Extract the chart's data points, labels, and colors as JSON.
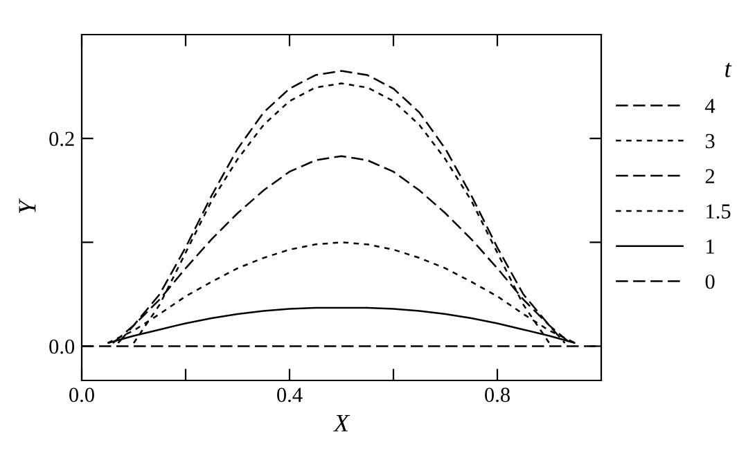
{
  "chart_data": {
    "type": "line",
    "xlabel": "X",
    "ylabel": "Y",
    "legend_title": "t",
    "legend": "right",
    "grid": false,
    "marker": "none",
    "xlim": [
      0,
      1.0
    ],
    "ylim": [
      -0.033,
      0.3
    ],
    "xticks": [
      {
        "value": 0,
        "label": "0.0"
      },
      {
        "value": 0.2,
        "label": null
      },
      {
        "value": 0.4,
        "label": "0.4"
      },
      {
        "value": 0.6,
        "label": null
      },
      {
        "value": 0.8,
        "label": "0.8"
      }
    ],
    "yticks": [
      {
        "value": 0,
        "label": "0.0"
      },
      {
        "value": 0.1,
        "label": null
      },
      {
        "value": 0.2,
        "label": "0.2"
      }
    ],
    "series": [
      {
        "name": "4",
        "color": "#000000",
        "line_style": "dashed",
        "x": [
          0.07,
          0.1,
          0.15,
          0.2,
          0.25,
          0.3,
          0.35,
          0.4,
          0.45,
          0.5,
          0.55,
          0.6,
          0.65,
          0.7,
          0.75,
          0.8,
          0.85,
          0.9,
          0.93
        ],
        "values": [
          0.003,
          0.02,
          0.05,
          0.095,
          0.145,
          0.19,
          0.225,
          0.248,
          0.261,
          0.265,
          0.261,
          0.248,
          0.225,
          0.19,
          0.145,
          0.095,
          0.05,
          0.02,
          0.003
        ]
      },
      {
        "name": "3",
        "color": "#000000",
        "line_style": "dotted",
        "x": [
          0.1,
          0.15,
          0.2,
          0.25,
          0.3,
          0.35,
          0.4,
          0.45,
          0.5,
          0.55,
          0.6,
          0.65,
          0.7,
          0.75,
          0.8,
          0.85,
          0.9
        ],
        "values": [
          0.003,
          0.04,
          0.09,
          0.14,
          0.18,
          0.213,
          0.236,
          0.249,
          0.253,
          0.249,
          0.236,
          0.213,
          0.18,
          0.14,
          0.09,
          0.04,
          0.003
        ]
      },
      {
        "name": "2",
        "color": "#000000",
        "line_style": "dashed",
        "x": [
          0.06,
          0.1,
          0.15,
          0.2,
          0.25,
          0.3,
          0.35,
          0.4,
          0.45,
          0.5,
          0.55,
          0.6,
          0.65,
          0.7,
          0.75,
          0.8,
          0.85,
          0.9,
          0.94
        ],
        "values": [
          0.003,
          0.02,
          0.045,
          0.075,
          0.103,
          0.128,
          0.15,
          0.168,
          0.179,
          0.183,
          0.179,
          0.168,
          0.15,
          0.128,
          0.103,
          0.075,
          0.045,
          0.02,
          0.003
        ]
      },
      {
        "name": "1.5",
        "color": "#000000",
        "line_style": "dotted",
        "x": [
          0.05,
          0.1,
          0.15,
          0.2,
          0.25,
          0.3,
          0.35,
          0.4,
          0.45,
          0.5,
          0.55,
          0.6,
          0.65,
          0.7,
          0.75,
          0.8,
          0.85,
          0.9,
          0.95
        ],
        "values": [
          0.003,
          0.015,
          0.031,
          0.048,
          0.062,
          0.075,
          0.085,
          0.093,
          0.098,
          0.1,
          0.098,
          0.093,
          0.085,
          0.075,
          0.062,
          0.048,
          0.031,
          0.015,
          0.003
        ]
      },
      {
        "name": "1",
        "color": "#000000",
        "line_style": "solid",
        "x": [
          0.05,
          0.1,
          0.15,
          0.2,
          0.25,
          0.3,
          0.35,
          0.4,
          0.45,
          0.5,
          0.55,
          0.6,
          0.65,
          0.7,
          0.75,
          0.8,
          0.85,
          0.9,
          0.95
        ],
        "values": [
          0.003,
          0.01,
          0.016,
          0.022,
          0.027,
          0.031,
          0.034,
          0.036,
          0.037,
          0.037,
          0.037,
          0.036,
          0.034,
          0.031,
          0.027,
          0.022,
          0.016,
          0.01,
          0.003
        ]
      },
      {
        "name": "0",
        "color": "#000000",
        "line_style": "dashed",
        "x": [
          0.0,
          1.0
        ],
        "values": [
          0.0,
          0.0
        ]
      }
    ]
  }
}
